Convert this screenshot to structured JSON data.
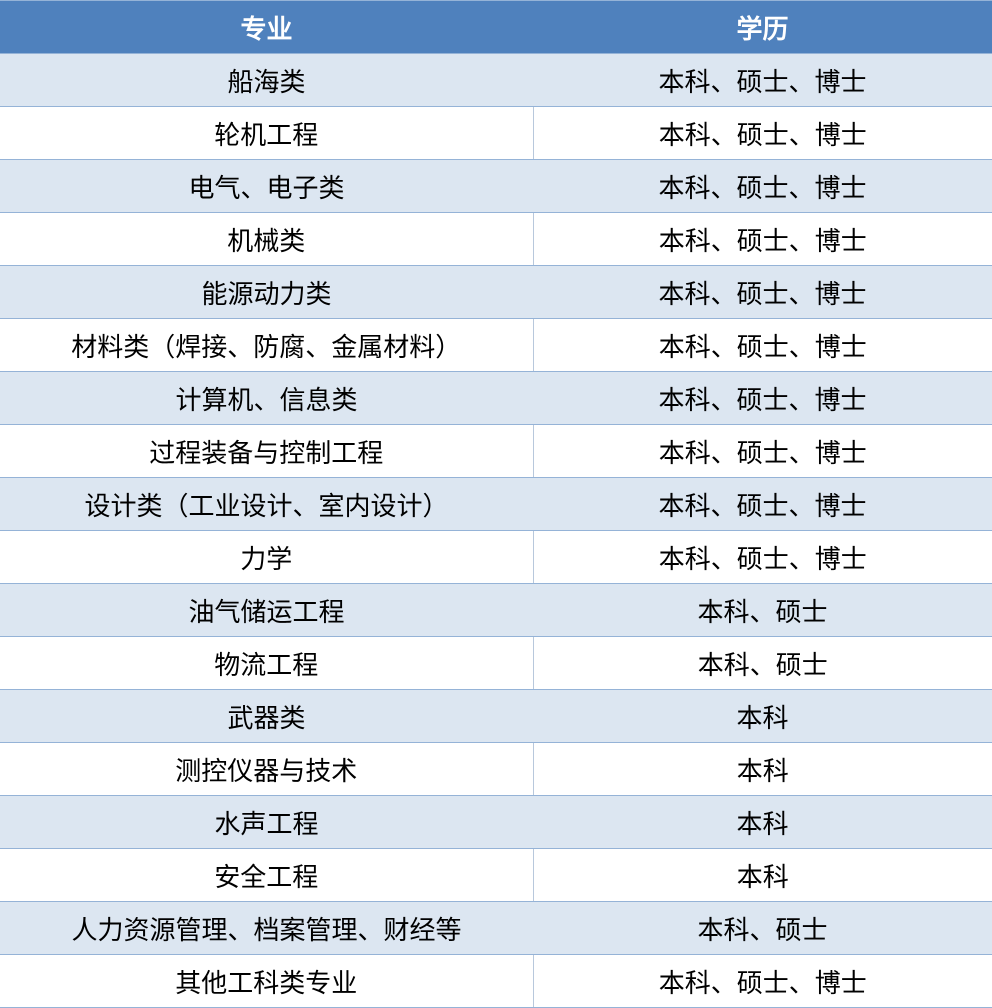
{
  "colors": {
    "header_bg": "#4f81bd",
    "band_bg": "#dce6f1",
    "border": "#95b3d7"
  },
  "headers": [
    "专业",
    "学历"
  ],
  "rows": [
    [
      "船海类",
      "本科、硕士、博士"
    ],
    [
      "轮机工程",
      "本科、硕士、博士"
    ],
    [
      "电气、电子类",
      "本科、硕士、博士"
    ],
    [
      "机械类",
      "本科、硕士、博士"
    ],
    [
      "能源动力类",
      "本科、硕士、博士"
    ],
    [
      "材料类（焊接、防腐、金属材料）",
      "本科、硕士、博士"
    ],
    [
      "计算机、信息类",
      "本科、硕士、博士"
    ],
    [
      "过程装备与控制工程",
      "本科、硕士、博士"
    ],
    [
      "设计类（工业设计、室内设计）",
      "本科、硕士、博士"
    ],
    [
      "力学",
      "本科、硕士、博士"
    ],
    [
      "油气储运工程",
      "本科、硕士"
    ],
    [
      "物流工程",
      "本科、硕士"
    ],
    [
      "武器类",
      "本科"
    ],
    [
      "测控仪器与技术",
      "本科"
    ],
    [
      "水声工程",
      "本科"
    ],
    [
      "安全工程",
      "本科"
    ],
    [
      "人力资源管理、档案管理、财经等",
      "本科、硕士"
    ],
    [
      "其他工科类专业",
      "本科、硕士、博士"
    ]
  ]
}
